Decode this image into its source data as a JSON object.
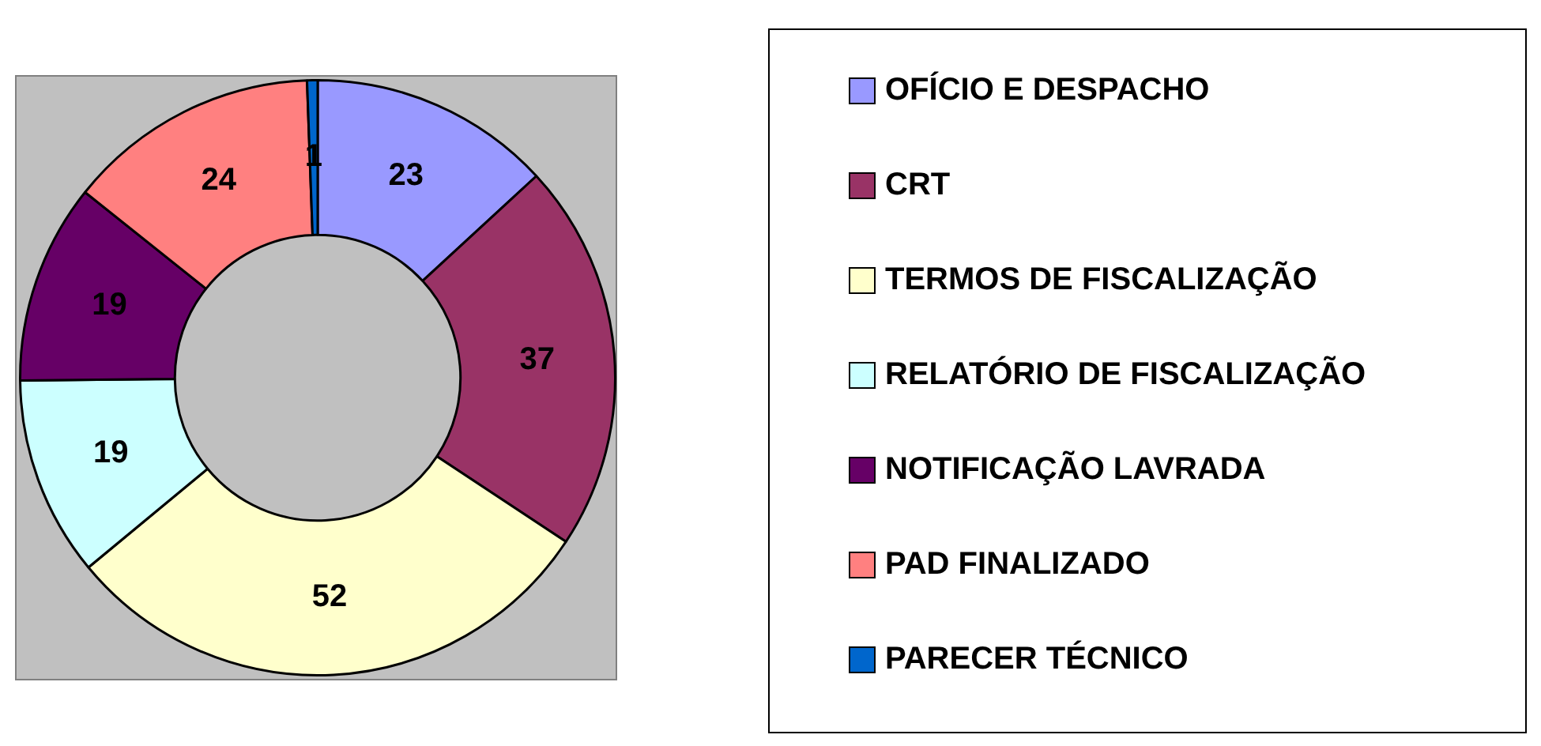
{
  "chart_data": {
    "type": "donut",
    "categories": [
      "OFÍCIO E DESPACHO",
      "CRT",
      "TERMOS DE FISCALIZAÇÃO",
      "RELATÓRIO DE FISCALIZAÇÃO",
      "NOTIFICAÇÃO LAVRADA",
      "PAD FINALIZADO",
      "PARECER TÉCNICO"
    ],
    "values": [
      23,
      37,
      52,
      19,
      19,
      24,
      1
    ],
    "colors": [
      "#9999ff",
      "#993366",
      "#ffffcc",
      "#ccffff",
      "#660066",
      "#ff8080",
      "#0066cc"
    ],
    "data_labels": true,
    "legend": "right"
  }
}
